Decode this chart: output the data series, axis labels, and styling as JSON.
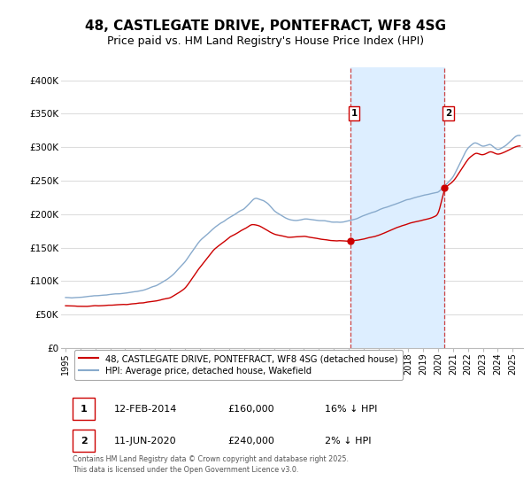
{
  "title": "48, CASTLEGATE DRIVE, PONTEFRACT, WF8 4SG",
  "subtitle": "Price paid vs. HM Land Registry's House Price Index (HPI)",
  "title_fontsize": 11,
  "subtitle_fontsize": 9,
  "legend_label_red": "48, CASTLEGATE DRIVE, PONTEFRACT, WF8 4SG (detached house)",
  "legend_label_blue": "HPI: Average price, detached house, Wakefield",
  "footer": "Contains HM Land Registry data © Crown copyright and database right 2025.\nThis data is licensed under the Open Government Licence v3.0.",
  "red_color": "#cc0000",
  "blue_color": "#88aacc",
  "marker1_date": 2014.12,
  "marker2_date": 2020.44,
  "marker1_value": 160000,
  "marker2_value": 240000,
  "vline_color": "#cc4444",
  "shade_color": "#ddeeff",
  "ylim_min": 0,
  "ylim_max": 420000,
  "ytick_values": [
    0,
    50000,
    100000,
    150000,
    200000,
    250000,
    300000,
    350000,
    400000
  ],
  "ytick_labels": [
    "£0",
    "£50K",
    "£100K",
    "£150K",
    "£200K",
    "£250K",
    "£300K",
    "£350K",
    "£400K"
  ],
  "background_color": "#ffffff",
  "plot_bg_color": "#ffffff",
  "grid_color": "#dddddd",
  "table_row1": [
    "1",
    "12-FEB-2014",
    "£160,000",
    "16% ↓ HPI"
  ],
  "table_row2": [
    "2",
    "11-JUN-2020",
    "£240,000",
    "2% ↓ HPI"
  ],
  "hpi_keypoints": [
    [
      1995.0,
      75000
    ],
    [
      1996.0,
      76000
    ],
    [
      1997.0,
      78000
    ],
    [
      1998.0,
      80000
    ],
    [
      1999.0,
      82000
    ],
    [
      2000.0,
      85000
    ],
    [
      2001.0,
      92000
    ],
    [
      2002.0,
      105000
    ],
    [
      2003.0,
      128000
    ],
    [
      2004.0,
      160000
    ],
    [
      2005.0,
      180000
    ],
    [
      2006.0,
      195000
    ],
    [
      2007.0,
      208000
    ],
    [
      2007.7,
      225000
    ],
    [
      2008.5,
      218000
    ],
    [
      2009.0,
      205000
    ],
    [
      2009.5,
      198000
    ],
    [
      2010.0,
      192000
    ],
    [
      2010.5,
      190000
    ],
    [
      2011.0,
      193000
    ],
    [
      2011.5,
      192000
    ],
    [
      2012.0,
      190000
    ],
    [
      2012.5,
      190000
    ],
    [
      2013.0,
      188000
    ],
    [
      2013.5,
      188000
    ],
    [
      2014.0,
      190000
    ],
    [
      2014.5,
      193000
    ],
    [
      2015.0,
      198000
    ],
    [
      2016.0,
      206000
    ],
    [
      2017.0,
      214000
    ],
    [
      2018.0,
      222000
    ],
    [
      2019.0,
      228000
    ],
    [
      2019.5,
      230000
    ],
    [
      2020.0,
      232000
    ],
    [
      2020.44,
      242000
    ],
    [
      2021.0,
      255000
    ],
    [
      2022.0,
      300000
    ],
    [
      2022.5,
      308000
    ],
    [
      2023.0,
      300000
    ],
    [
      2023.5,
      305000
    ],
    [
      2024.0,
      295000
    ],
    [
      2024.5,
      302000
    ],
    [
      2025.3,
      318000
    ]
  ],
  "red_keypoints": [
    [
      1995.0,
      63000
    ],
    [
      1996.0,
      62000
    ],
    [
      1997.0,
      63000
    ],
    [
      1998.0,
      64000
    ],
    [
      1999.0,
      65000
    ],
    [
      2000.0,
      67000
    ],
    [
      2001.0,
      70000
    ],
    [
      2002.0,
      75000
    ],
    [
      2003.0,
      88000
    ],
    [
      2004.0,
      120000
    ],
    [
      2005.0,
      148000
    ],
    [
      2006.0,
      165000
    ],
    [
      2007.0,
      178000
    ],
    [
      2007.5,
      185000
    ],
    [
      2008.0,
      183000
    ],
    [
      2009.0,
      170000
    ],
    [
      2010.0,
      165000
    ],
    [
      2011.0,
      167000
    ],
    [
      2012.0,
      163000
    ],
    [
      2013.0,
      160000
    ],
    [
      2014.12,
      160000
    ],
    [
      2014.5,
      161000
    ],
    [
      2015.0,
      163000
    ],
    [
      2016.0,
      168000
    ],
    [
      2017.0,
      178000
    ],
    [
      2018.0,
      186000
    ],
    [
      2019.0,
      191000
    ],
    [
      2019.5,
      194000
    ],
    [
      2020.0,
      198000
    ],
    [
      2020.44,
      240000
    ],
    [
      2021.0,
      248000
    ],
    [
      2022.0,
      282000
    ],
    [
      2022.5,
      292000
    ],
    [
      2023.0,
      288000
    ],
    [
      2023.5,
      294000
    ],
    [
      2024.0,
      289000
    ],
    [
      2024.5,
      293000
    ],
    [
      2025.3,
      302000
    ]
  ]
}
